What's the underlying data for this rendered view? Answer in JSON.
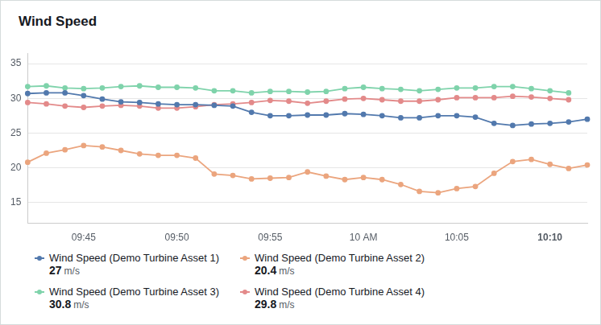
{
  "chart_data": {
    "type": "line",
    "title": "Wind Speed",
    "categories": [
      null,
      null,
      null,
      "09:45",
      null,
      null,
      null,
      null,
      "09:50",
      null,
      null,
      null,
      null,
      "09:55",
      null,
      null,
      null,
      null,
      "10 AM",
      null,
      null,
      null,
      null,
      "10:05",
      null,
      null,
      null,
      null,
      "10:10",
      null,
      null
    ],
    "unit": "m/s",
    "series": [
      {
        "name": "Wind Speed (Demo Turbine Asset 1)",
        "color": "#5279ad",
        "current_value": 27,
        "values": [
          30.7,
          30.8,
          30.8,
          30.4,
          29.9,
          29.5,
          29.4,
          29.2,
          29.1,
          29.1,
          29.0,
          28.9,
          28.0,
          27.5,
          27.5,
          27.6,
          27.6,
          27.8,
          27.7,
          27.5,
          27.2,
          27.2,
          27.5,
          27.5,
          27.3,
          26.4,
          26.1,
          26.3,
          26.4,
          26.6,
          27.0
        ]
      },
      {
        "name": "Wind Speed (Demo Turbine Asset 2)",
        "color": "#eba57e",
        "current_value": 20.4,
        "values": [
          20.8,
          22.1,
          22.6,
          23.2,
          23.0,
          22.5,
          22.0,
          21.8,
          21.8,
          21.4,
          19.1,
          18.9,
          18.4,
          18.5,
          18.6,
          19.4,
          18.8,
          18.3,
          18.6,
          18.3,
          17.6,
          16.6,
          16.4,
          17.0,
          17.3,
          19.2,
          20.9,
          21.2,
          20.5,
          19.9,
          20.4
        ]
      },
      {
        "name": "Wind Speed (Demo Turbine Asset 3)",
        "color": "#7fd3ab",
        "current_value": 30.8,
        "values": [
          31.7,
          31.8,
          31.5,
          31.4,
          31.5,
          31.7,
          31.8,
          31.6,
          31.6,
          31.5,
          31.1,
          31.1,
          30.8,
          31.0,
          31.0,
          30.9,
          31.0,
          31.4,
          31.6,
          31.4,
          31.3,
          31.1,
          31.3,
          31.5,
          31.5,
          31.7,
          31.7,
          31.4,
          31.1,
          30.8,
          null
        ]
      },
      {
        "name": "Wind Speed (Demo Turbine Asset 4)",
        "color": "#e38a8a",
        "current_value": 29.8,
        "values": [
          29.4,
          29.2,
          28.9,
          28.7,
          28.9,
          29.0,
          28.9,
          28.6,
          28.6,
          28.8,
          29.1,
          29.2,
          29.4,
          29.7,
          29.6,
          29.3,
          29.6,
          29.9,
          30.0,
          29.8,
          29.6,
          29.6,
          29.8,
          30.1,
          30.1,
          30.1,
          30.3,
          30.2,
          30.0,
          29.8,
          null
        ]
      }
    ],
    "ylim": [
      12,
      36.5
    ],
    "yticks": [
      15,
      20,
      25,
      30,
      35
    ],
    "grid": true,
    "legend": "bottom",
    "marker": "circle"
  }
}
